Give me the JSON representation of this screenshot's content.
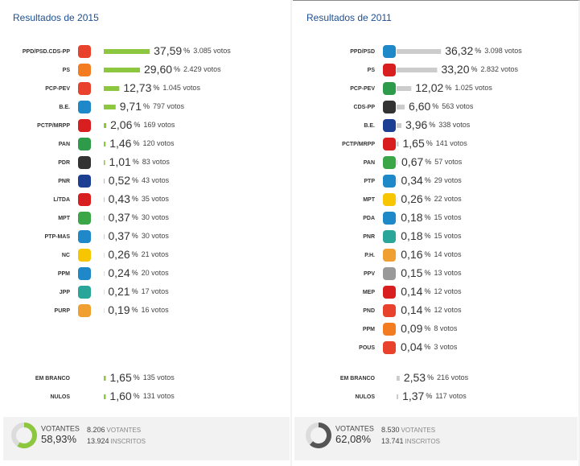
{
  "panels": [
    {
      "title": "Resultados de 2015",
      "unit": "%",
      "rows": [
        {
          "name": "PPD/PSD.CDS-PP",
          "pct": 37.59,
          "pct_label": "37,59",
          "votes": "3.085 votos"
        },
        {
          "name": "PS",
          "pct": 29.6,
          "pct_label": "29,60",
          "votes": "2.429 votos"
        },
        {
          "name": "PCP-PEV",
          "pct": 12.73,
          "pct_label": "12,73",
          "votes": "1.045 votos"
        },
        {
          "name": "B.E.",
          "pct": 9.71,
          "pct_label": "9,71",
          "votes": "797 votos"
        },
        {
          "name": "PCTP/MRPP",
          "pct": 2.06,
          "pct_label": "2,06",
          "votes": "169 votos"
        },
        {
          "name": "PAN",
          "pct": 1.46,
          "pct_label": "1,46",
          "votes": "120 votos"
        },
        {
          "name": "PDR",
          "pct": 1.01,
          "pct_label": "1,01",
          "votes": "83 votos"
        },
        {
          "name": "PNR",
          "pct": 0.52,
          "pct_label": "0,52",
          "votes": "43 votos"
        },
        {
          "name": "L/TDA",
          "pct": 0.43,
          "pct_label": "0,43",
          "votes": "35 votos"
        },
        {
          "name": "MPT",
          "pct": 0.37,
          "pct_label": "0,37",
          "votes": "30 votos"
        },
        {
          "name": "PTP-MAS",
          "pct": 0.37,
          "pct_label": "0,37",
          "votes": "30 votos"
        },
        {
          "name": "NC",
          "pct": 0.26,
          "pct_label": "0,26",
          "votes": "21 votos"
        },
        {
          "name": "PPM",
          "pct": 0.24,
          "pct_label": "0,24",
          "votes": "20 votos"
        },
        {
          "name": "JPP",
          "pct": 0.21,
          "pct_label": "0,21",
          "votes": "17 votos"
        },
        {
          "name": "PURP",
          "pct": 0.19,
          "pct_label": "0,19",
          "votes": "16 votos"
        }
      ],
      "extra": [
        {
          "name": "EM BRANCO",
          "pct": 1.65,
          "pct_label": "1,65",
          "votes": "135 votos"
        },
        {
          "name": "NULOS",
          "pct": 1.6,
          "pct_label": "1,60",
          "votes": "131 votos"
        }
      ],
      "footer": {
        "label": "VOTANTES",
        "pct": 58.93,
        "pct_label": "58,93",
        "voters": "8.206",
        "voters_label": "VOTANTES",
        "registered": "13.924",
        "registered_label": "INSCRITOS"
      }
    },
    {
      "title": "Resultados de 2011",
      "unit": "%",
      "rows": [
        {
          "name": "PPD/PSD",
          "pct": 36.32,
          "pct_label": "36,32",
          "votes": "3.098 votos"
        },
        {
          "name": "PS",
          "pct": 33.2,
          "pct_label": "33,20",
          "votes": "2.832 votos"
        },
        {
          "name": "PCP-PEV",
          "pct": 12.02,
          "pct_label": "12,02",
          "votes": "1.025 votos"
        },
        {
          "name": "CDS-PP",
          "pct": 6.6,
          "pct_label": "6,60",
          "votes": "563 votos"
        },
        {
          "name": "B.E.",
          "pct": 3.96,
          "pct_label": "3,96",
          "votes": "338 votos"
        },
        {
          "name": "PCTP/MRPP",
          "pct": 1.65,
          "pct_label": "1,65",
          "votes": "141 votos"
        },
        {
          "name": "PAN",
          "pct": 0.67,
          "pct_label": "0,67",
          "votes": "57 votos"
        },
        {
          "name": "PTP",
          "pct": 0.34,
          "pct_label": "0,34",
          "votes": "29 votos"
        },
        {
          "name": "MPT",
          "pct": 0.26,
          "pct_label": "0,26",
          "votes": "22 votos"
        },
        {
          "name": "PDA",
          "pct": 0.18,
          "pct_label": "0,18",
          "votes": "15 votos"
        },
        {
          "name": "PNR",
          "pct": 0.18,
          "pct_label": "0,18",
          "votes": "15 votos"
        },
        {
          "name": "P.H.",
          "pct": 0.16,
          "pct_label": "0,16",
          "votes": "14 votos"
        },
        {
          "name": "PPV",
          "pct": 0.15,
          "pct_label": "0,15",
          "votes": "13 votos"
        },
        {
          "name": "MEP",
          "pct": 0.14,
          "pct_label": "0,14",
          "votes": "12 votos"
        },
        {
          "name": "PND",
          "pct": 0.14,
          "pct_label": "0,14",
          "votes": "12 votos"
        },
        {
          "name": "PPM",
          "pct": 0.09,
          "pct_label": "0,09",
          "votes": "8 votos"
        },
        {
          "name": "POUS",
          "pct": 0.04,
          "pct_label": "0,04",
          "votes": "3 votos"
        }
      ],
      "extra": [
        {
          "name": "EM BRANCO",
          "pct": 2.53,
          "pct_label": "2,53",
          "votes": "216 votos"
        },
        {
          "name": "NULOS",
          "pct": 1.37,
          "pct_label": "1,37",
          "votes": "117 votos"
        }
      ],
      "footer": {
        "label": "VOTANTES",
        "pct": 62.08,
        "pct_label": "62,08",
        "voters": "8.530",
        "voters_label": "VOTANTES",
        "registered": "13.741",
        "registered_label": "INSCRITOS"
      }
    }
  ]
}
